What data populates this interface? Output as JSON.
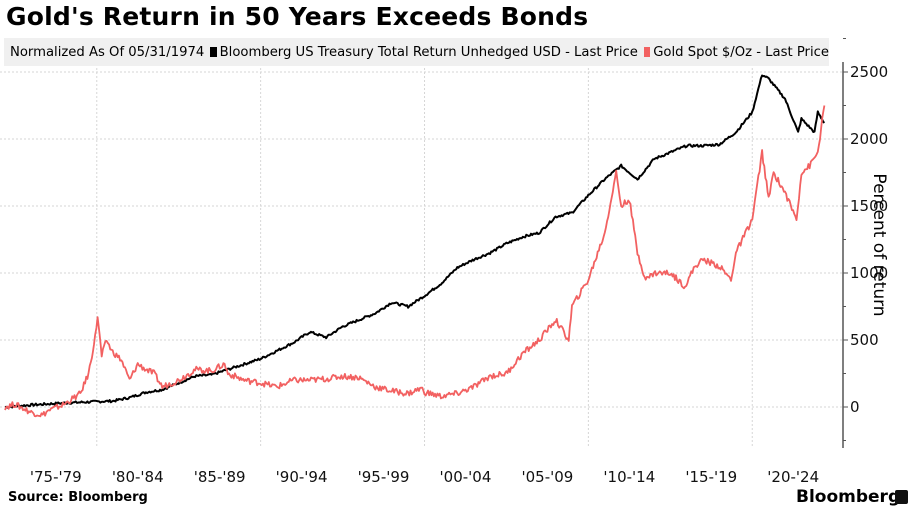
{
  "header": {
    "title": "Gold's Return in 50 Years Exceeds Bonds"
  },
  "legend": {
    "note": "Normalized As Of 05/31/1974",
    "items": [
      {
        "label": "Bloomberg US Treasury Total Return Unhedged USD - Last Price",
        "color": "#000000"
      },
      {
        "label": "Gold Spot $/Oz - Last Price",
        "color": "#f26161"
      }
    ]
  },
  "footer": {
    "source": "Source: Bloomberg",
    "brand": "Bloomberg"
  },
  "chart_data": {
    "type": "line",
    "title": "Gold's Return in 50 Years Exceeds Bonds",
    "xlabel": "",
    "ylabel": "Percent of return",
    "x_tick_labels": [
      "'75-'79",
      "'80-'84",
      "'85-'89",
      "'90-'94",
      "'95-'99",
      "'00-'04",
      "'05-'09",
      "'10-'14",
      "'15-'19",
      "'20-'24"
    ],
    "y_ticks": [
      0,
      500,
      1000,
      1500,
      2000,
      2500
    ],
    "ylim": [
      -300,
      2800
    ],
    "xlim": [
      1974.4,
      2024.5
    ],
    "grid": true,
    "legend_position": "top",
    "y_axis_position": "right",
    "series": [
      {
        "name": "Bloomberg US Treasury Total Return Unhedged USD - Last Price",
        "color": "#000000",
        "x": [
          1974.4,
          1976,
          1978,
          1980,
          1981,
          1982,
          1983,
          1984,
          1985,
          1986,
          1987,
          1988,
          1989,
          1990,
          1991,
          1992,
          1993,
          1994,
          1995,
          1996,
          1997,
          1998,
          1999,
          2000,
          2001,
          2002,
          2003,
          2004,
          2005,
          2006,
          2007,
          2008,
          2009,
          2010,
          2011,
          2012,
          2013,
          2014,
          2015,
          2016,
          2017,
          2018,
          2019,
          2020,
          2020.6,
          2021,
          2022,
          2022.8,
          2023,
          2023.8,
          2024,
          2024.4
        ],
        "values": [
          0,
          15,
          30,
          40,
          45,
          70,
          110,
          130,
          180,
          230,
          240,
          280,
          320,
          360,
          420,
          480,
          560,
          520,
          600,
          650,
          700,
          780,
          750,
          830,
          920,
          1040,
          1100,
          1150,
          1220,
          1270,
          1300,
          1420,
          1450,
          1580,
          1700,
          1800,
          1700,
          1850,
          1900,
          1950,
          1950,
          1960,
          2050,
          2200,
          2480,
          2450,
          2300,
          2050,
          2150,
          2050,
          2200,
          2120
        ]
      },
      {
        "name": "Gold Spot $/Oz - Last Price",
        "color": "#f26161",
        "x": [
          1974.4,
          1975,
          1976,
          1976.7,
          1977,
          1978,
          1979,
          1979.5,
          1979.9,
          1980.05,
          1980.3,
          1980.6,
          1980.9,
          1981.5,
          1982,
          1982.5,
          1983,
          1983.5,
          1984,
          1985,
          1985.5,
          1986,
          1987,
          1987.8,
          1988,
          1989,
          1990,
          1991,
          1992,
          1993,
          1994,
          1995,
          1996,
          1997,
          1998,
          1999,
          1999.8,
          2000,
          2001,
          2002,
          2003,
          2004,
          2005,
          2006,
          2007,
          2008,
          2008.8,
          2009,
          2010,
          2011,
          2011.7,
          2012,
          2012.5,
          2013,
          2013.5,
          2014,
          2015,
          2015.9,
          2016.5,
          2017,
          2018,
          2018.7,
          2019,
          2020,
          2020.6,
          2021,
          2021.3,
          2022,
          2022.7,
          2023,
          2023.5,
          2024,
          2024.4
        ],
        "values": [
          0,
          20,
          -40,
          -60,
          -30,
          20,
          100,
          250,
          520,
          680,
          380,
          500,
          420,
          350,
          200,
          320,
          280,
          250,
          150,
          200,
          240,
          280,
          270,
          320,
          250,
          200,
          180,
          150,
          200,
          200,
          210,
          230,
          220,
          150,
          120,
          100,
          140,
          110,
          80,
          100,
          150,
          230,
          250,
          400,
          500,
          650,
          500,
          750,
          950,
          1300,
          1750,
          1500,
          1550,
          1150,
          950,
          1000,
          1000,
          900,
          1050,
          1100,
          1050,
          950,
          1150,
          1400,
          1900,
          1550,
          1750,
          1600,
          1400,
          1750,
          1800,
          1900,
          2250
        ]
      }
    ]
  }
}
